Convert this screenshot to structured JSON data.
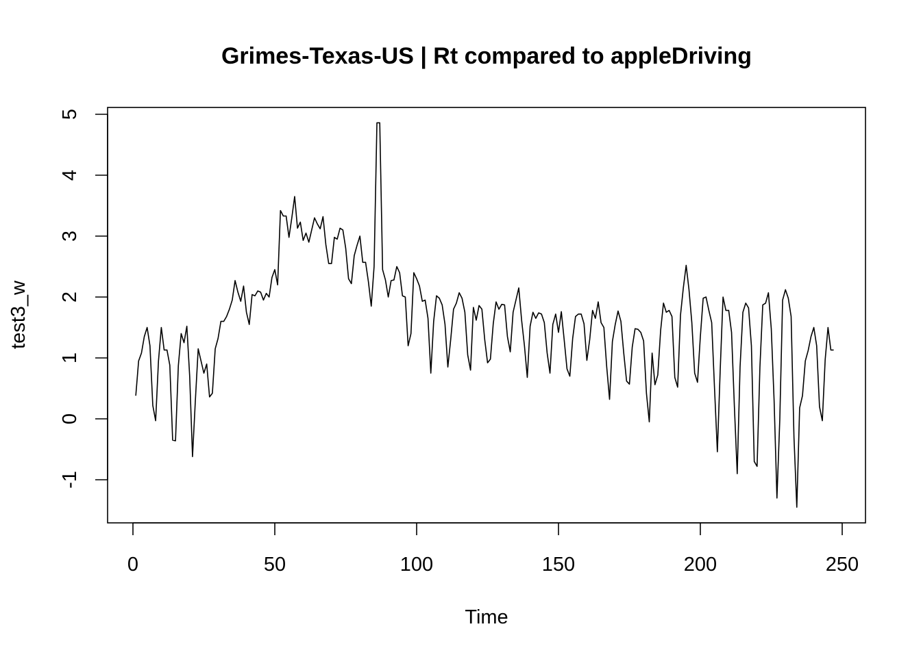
{
  "chart_data": {
    "type": "line",
    "title": "Grimes-Texas-US | Rt compared to appleDriving",
    "xlabel": "Time",
    "ylabel": "test3_w",
    "xlim": [
      0,
      250
    ],
    "ylim": [
      -1.5,
      5
    ],
    "x_ticks": [
      0,
      50,
      100,
      150,
      200,
      250
    ],
    "y_ticks": [
      -1,
      0,
      1,
      2,
      3,
      4,
      5
    ],
    "x_tick_labels": [
      "0",
      "50",
      "100",
      "150",
      "200",
      "250"
    ],
    "y_tick_labels": [
      "-1",
      "0",
      "1",
      "2",
      "3",
      "4",
      "5"
    ],
    "grid": false,
    "series": [
      {
        "x_start": 1,
        "x_step": 1,
        "values": [
          0.38,
          0.95,
          1.08,
          1.35,
          1.5,
          1.2,
          0.22,
          -0.03,
          0.95,
          1.5,
          1.13,
          1.13,
          0.88,
          -0.35,
          -0.36,
          0.87,
          1.4,
          1.25,
          1.52,
          0.7,
          -0.62,
          0.3,
          1.15,
          0.95,
          0.75,
          0.9,
          0.36,
          0.42,
          1.15,
          1.32,
          1.6,
          1.6,
          1.68,
          1.8,
          1.95,
          2.27,
          2.08,
          1.93,
          2.18,
          1.75,
          1.55,
          2.04,
          2.02,
          2.1,
          2.08,
          1.95,
          2.06,
          2.0,
          2.32,
          2.45,
          2.2,
          3.42,
          3.33,
          3.33,
          2.98,
          3.3,
          3.65,
          3.13,
          3.23,
          2.93,
          3.05,
          2.9,
          3.1,
          3.3,
          3.2,
          3.12,
          3.32,
          2.86,
          2.55,
          2.55,
          2.98,
          2.95,
          3.13,
          3.1,
          2.8,
          2.3,
          2.22,
          2.68,
          2.85,
          3.0,
          2.57,
          2.57,
          2.25,
          1.85,
          2.5,
          4.86,
          4.86,
          2.45,
          2.28,
          2.0,
          2.27,
          2.28,
          2.5,
          2.4,
          2.02,
          2.0,
          1.2,
          1.4,
          2.4,
          2.3,
          2.18,
          1.93,
          1.95,
          1.65,
          0.75,
          1.6,
          2.02,
          1.98,
          1.87,
          1.55,
          0.85,
          1.3,
          1.8,
          1.9,
          2.07,
          1.98,
          1.75,
          1.05,
          0.8,
          1.83,
          1.62,
          1.86,
          1.8,
          1.3,
          0.92,
          0.98,
          1.56,
          1.92,
          1.8,
          1.88,
          1.87,
          1.35,
          1.1,
          1.75,
          1.95,
          2.15,
          1.62,
          1.2,
          0.68,
          1.52,
          1.75,
          1.65,
          1.74,
          1.72,
          1.58,
          1.08,
          0.75,
          1.55,
          1.72,
          1.42,
          1.76,
          1.3,
          0.82,
          0.7,
          1.32,
          1.68,
          1.72,
          1.72,
          1.56,
          0.96,
          1.3,
          1.78,
          1.65,
          1.92,
          1.58,
          1.5,
          0.85,
          0.32,
          1.27,
          1.55,
          1.77,
          1.6,
          1.08,
          0.62,
          0.57,
          1.18,
          1.48,
          1.47,
          1.42,
          1.28,
          0.42,
          -0.05,
          1.08,
          0.56,
          0.72,
          1.45,
          1.9,
          1.75,
          1.78,
          1.68,
          0.68,
          0.52,
          1.7,
          2.15,
          2.52,
          2.12,
          1.58,
          0.75,
          0.6,
          1.35,
          1.98,
          2.0,
          1.78,
          1.58,
          0.5,
          -0.54,
          0.8,
          2.0,
          1.78,
          1.78,
          1.42,
          0.2,
          -0.9,
          0.85,
          1.75,
          1.9,
          1.82,
          1.2,
          -0.7,
          -0.78,
          0.85,
          1.87,
          1.9,
          2.07,
          1.48,
          0.3,
          -1.3,
          -0.02,
          1.95,
          2.12,
          1.98,
          1.68,
          -0.3,
          -1.45,
          0.18,
          0.38,
          0.95,
          1.12,
          1.35,
          1.5,
          1.2,
          0.2,
          -0.03,
          0.97,
          1.5,
          1.13,
          1.13
        ]
      }
    ]
  }
}
